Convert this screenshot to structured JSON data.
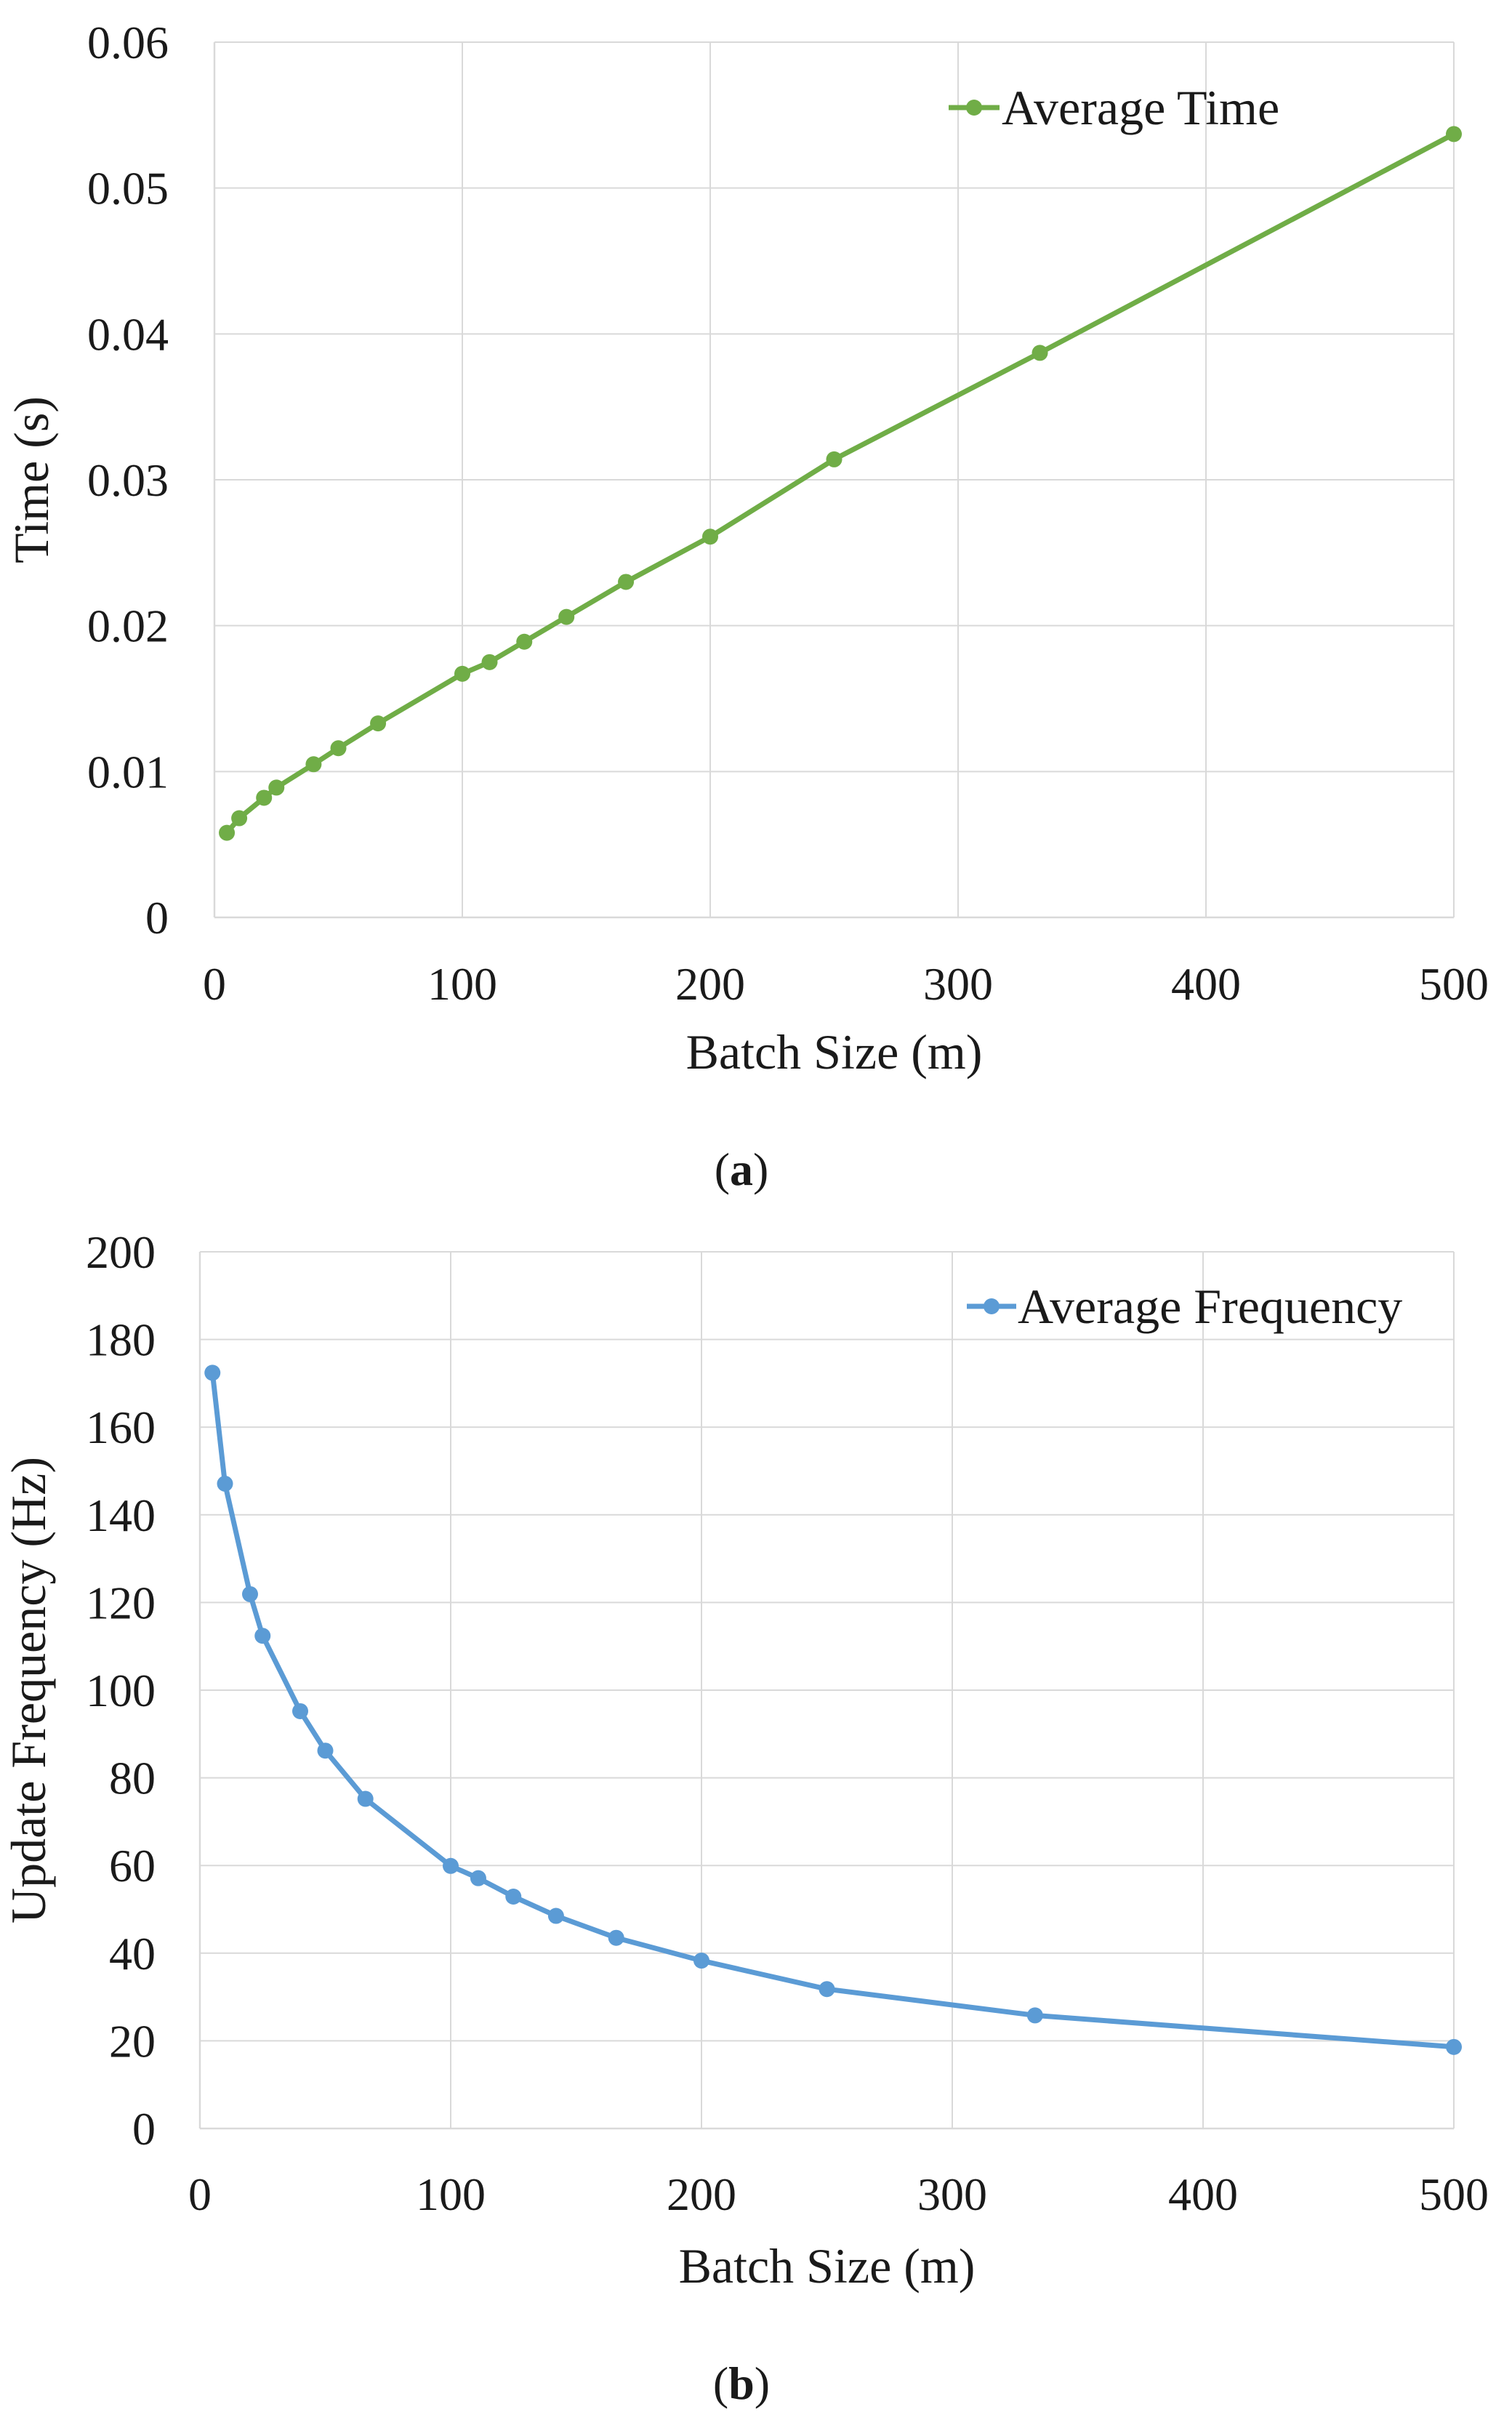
{
  "chart_data": [
    {
      "id": "a",
      "type": "line",
      "title": "",
      "caption_letter": "a",
      "xlabel": "Batch Size (m)",
      "ylabel": "Time (s)",
      "xlim": [
        0,
        500
      ],
      "ylim": [
        0,
        0.06
      ],
      "x_ticks": [
        0,
        100,
        200,
        300,
        400,
        500
      ],
      "y_ticks": [
        0,
        0.01,
        0.02,
        0.03,
        0.04,
        0.05,
        0.06
      ],
      "x_tick_labels": [
        "0",
        "100",
        "200",
        "300",
        "400",
        "500"
      ],
      "y_tick_labels": [
        "0",
        "0.01",
        "0.02",
        "0.03",
        "0.04",
        "0.05",
        "0.06"
      ],
      "grid": true,
      "legend_position": "top-right",
      "series": [
        {
          "name": "Average Time",
          "color": "#70ad47",
          "x": [
            5,
            10,
            20,
            25,
            40,
            50,
            66,
            100,
            111,
            125,
            142,
            166,
            200,
            250,
            333,
            500
          ],
          "y": [
            0.0058,
            0.0068,
            0.0082,
            0.0089,
            0.0105,
            0.0116,
            0.0133,
            0.0167,
            0.0175,
            0.0189,
            0.0206,
            0.023,
            0.0261,
            0.0314,
            0.0387,
            0.0537
          ]
        }
      ]
    },
    {
      "id": "b",
      "type": "line",
      "title": "",
      "caption_letter": "b",
      "xlabel": "Batch Size (m)",
      "ylabel": "Update Frequency (Hz)",
      "xlim": [
        0,
        500
      ],
      "ylim": [
        0,
        200
      ],
      "x_ticks": [
        0,
        100,
        200,
        300,
        400,
        500
      ],
      "y_ticks": [
        0,
        20,
        40,
        60,
        80,
        100,
        120,
        140,
        160,
        180,
        200
      ],
      "x_tick_labels": [
        "0",
        "100",
        "200",
        "300",
        "400",
        "500"
      ],
      "y_tick_labels": [
        "0",
        "20",
        "40",
        "60",
        "80",
        "100",
        "120",
        "140",
        "160",
        "180",
        "200"
      ],
      "grid": true,
      "legend_position": "top-right",
      "series": [
        {
          "name": "Average Frequency",
          "color": "#5b9bd5",
          "x": [
            5,
            10,
            20,
            25,
            40,
            50,
            66,
            100,
            111,
            125,
            142,
            166,
            200,
            250,
            333,
            500
          ],
          "y": [
            172.4,
            147.1,
            121.9,
            112.4,
            95.2,
            86.2,
            75.2,
            59.9,
            57.1,
            52.9,
            48.5,
            43.5,
            38.3,
            31.8,
            25.8,
            18.6
          ]
        }
      ]
    }
  ]
}
